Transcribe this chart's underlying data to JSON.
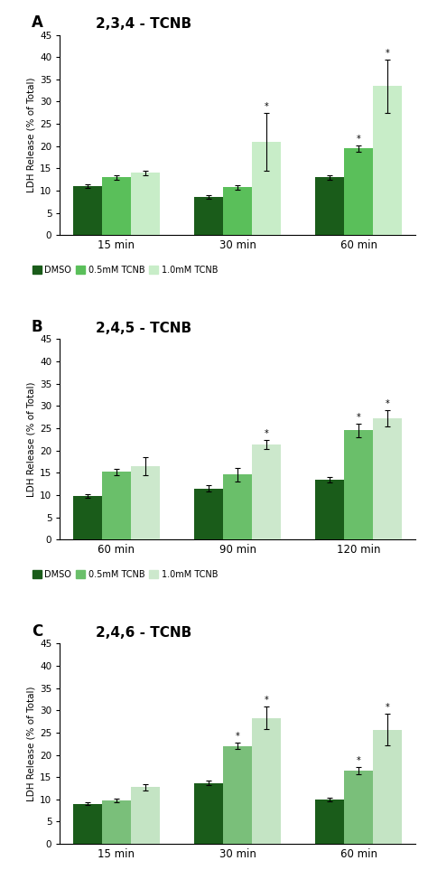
{
  "panels": [
    {
      "label": "A",
      "title": "2,3,4 - TCNB",
      "time_labels": [
        "15 min",
        "30 min",
        "60 min"
      ],
      "dmso": [
        11.0,
        8.5,
        13.0
      ],
      "dmso_err": [
        0.5,
        0.4,
        0.5
      ],
      "half_mM": [
        13.0,
        10.7,
        19.5
      ],
      "half_mM_err": [
        0.5,
        0.5,
        0.7
      ],
      "one_mM": [
        14.0,
        21.0,
        33.5
      ],
      "one_mM_err": [
        0.5,
        6.5,
        6.0
      ],
      "sig_half": [
        false,
        false,
        true
      ],
      "sig_one": [
        false,
        true,
        true
      ]
    },
    {
      "label": "B",
      "title": "2,4,5 - TCNB",
      "time_labels": [
        "60 min",
        "90 min",
        "120 min"
      ],
      "dmso": [
        9.7,
        11.5,
        13.5
      ],
      "dmso_err": [
        0.4,
        0.8,
        0.6
      ],
      "half_mM": [
        15.2,
        14.6,
        24.5
      ],
      "half_mM_err": [
        0.7,
        1.5,
        1.5
      ],
      "one_mM": [
        16.5,
        21.3,
        27.2
      ],
      "one_mM_err": [
        2.0,
        1.0,
        1.8
      ],
      "sig_half": [
        false,
        false,
        true
      ],
      "sig_one": [
        false,
        true,
        true
      ]
    },
    {
      "label": "C",
      "title": "2,4,6 - TCNB",
      "time_labels": [
        "15 min",
        "30 min",
        "60 min"
      ],
      "dmso": [
        9.0,
        13.7,
        10.0
      ],
      "dmso_err": [
        0.3,
        0.5,
        0.4
      ],
      "half_mM": [
        9.7,
        22.0,
        16.5
      ],
      "half_mM_err": [
        0.4,
        0.7,
        0.8
      ],
      "one_mM": [
        12.8,
        28.3,
        25.7
      ],
      "one_mM_err": [
        0.7,
        2.5,
        3.5
      ],
      "sig_half": [
        false,
        true,
        true
      ],
      "sig_one": [
        false,
        true,
        true
      ]
    }
  ],
  "color_dmso": "#1a5c1a",
  "color_half_A": "#5abf5a",
  "color_half_B": "#6abf6a",
  "color_half_C": "#7abf7a",
  "color_one_A": "#c8edc8",
  "color_one_B": "#cce8cc",
  "color_one_C": "#c4e4c4",
  "ylim": [
    0,
    45
  ],
  "yticks": [
    0,
    5,
    10,
    15,
    20,
    25,
    30,
    35,
    40,
    45
  ],
  "ylabel": "LDH Release (% of Total)",
  "legend_labels": [
    "DMSO",
    "0.5mM TCNB",
    "1.0mM TCNB"
  ],
  "bg_color": "#ffffff"
}
